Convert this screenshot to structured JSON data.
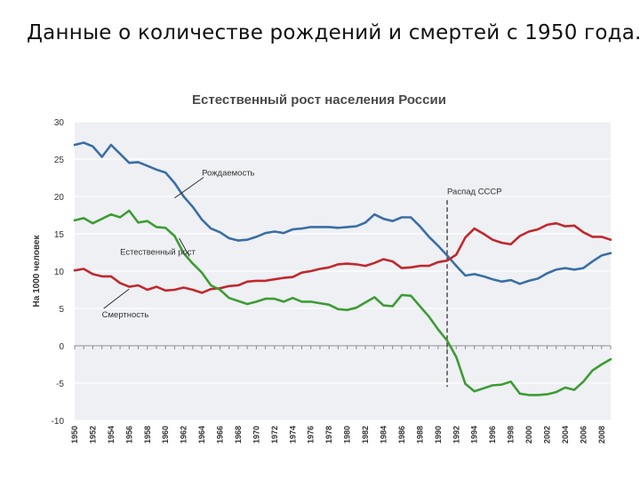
{
  "slide": {
    "title": "Данные о количестве рождений и смертей с 1950 года."
  },
  "colors": {
    "births": "#3b6ea5",
    "deaths": "#c0282d",
    "natural_growth": "#3f9b35",
    "plot_bg": "#eef0f4",
    "grid": "#ffffff",
    "annotation": "#333333"
  },
  "chart_data": {
    "type": "line",
    "title": "Естественный рост населения России",
    "ylabel": "На 1000 человек",
    "xlabel": "",
    "ylim": [
      -10,
      30
    ],
    "xlim": [
      1950,
      2009
    ],
    "yticks": [
      30,
      25,
      20,
      15,
      10,
      5,
      0,
      -5,
      -10
    ],
    "xticks": [
      1950,
      1952,
      1954,
      1956,
      1958,
      1960,
      1962,
      1964,
      1966,
      1968,
      1970,
      1972,
      1974,
      1976,
      1978,
      1980,
      1982,
      1984,
      1986,
      1988,
      1990,
      1992,
      1994,
      1996,
      1998,
      2000,
      2002,
      2004,
      2006,
      2008
    ],
    "grid": true,
    "legend": "inline labels",
    "series": [
      {
        "name": "Рождаемость",
        "key": "births",
        "points": [
          [
            1950,
            26.9
          ],
          [
            1951,
            27.2
          ],
          [
            1952,
            26.7
          ],
          [
            1953,
            25.3
          ],
          [
            1954,
            26.9
          ],
          [
            1955,
            25.7
          ],
          [
            1956,
            24.5
          ],
          [
            1957,
            24.6
          ],
          [
            1958,
            24.1
          ],
          [
            1959,
            23.6
          ],
          [
            1960,
            23.2
          ],
          [
            1961,
            21.8
          ],
          [
            1962,
            20.0
          ],
          [
            1963,
            18.6
          ],
          [
            1964,
            16.9
          ],
          [
            1965,
            15.7
          ],
          [
            1966,
            15.2
          ],
          [
            1967,
            14.4
          ],
          [
            1968,
            14.1
          ],
          [
            1969,
            14.2
          ],
          [
            1970,
            14.6
          ],
          [
            1971,
            15.1
          ],
          [
            1972,
            15.3
          ],
          [
            1973,
            15.1
          ],
          [
            1974,
            15.6
          ],
          [
            1975,
            15.7
          ],
          [
            1976,
            15.9
          ],
          [
            1977,
            15.9
          ],
          [
            1978,
            15.9
          ],
          [
            1979,
            15.8
          ],
          [
            1980,
            15.9
          ],
          [
            1981,
            16.0
          ],
          [
            1982,
            16.5
          ],
          [
            1983,
            17.6
          ],
          [
            1984,
            17.0
          ],
          [
            1985,
            16.7
          ],
          [
            1986,
            17.2
          ],
          [
            1987,
            17.2
          ],
          [
            1988,
            16.0
          ],
          [
            1989,
            14.6
          ],
          [
            1990,
            13.4
          ],
          [
            1991,
            12.1
          ],
          [
            1992,
            10.7
          ],
          [
            1993,
            9.4
          ],
          [
            1994,
            9.6
          ],
          [
            1995,
            9.3
          ],
          [
            1996,
            8.9
          ],
          [
            1997,
            8.6
          ],
          [
            1998,
            8.8
          ],
          [
            1999,
            8.3
          ],
          [
            2000,
            8.7
          ],
          [
            2001,
            9.0
          ],
          [
            2002,
            9.7
          ],
          [
            2003,
            10.2
          ],
          [
            2004,
            10.4
          ],
          [
            2005,
            10.2
          ],
          [
            2006,
            10.4
          ],
          [
            2007,
            11.3
          ],
          [
            2008,
            12.1
          ],
          [
            2009,
            12.4
          ]
        ]
      },
      {
        "name": "Смертность",
        "key": "deaths",
        "points": [
          [
            1950,
            10.1
          ],
          [
            1951,
            10.3
          ],
          [
            1952,
            9.6
          ],
          [
            1953,
            9.3
          ],
          [
            1954,
            9.3
          ],
          [
            1955,
            8.4
          ],
          [
            1956,
            7.9
          ],
          [
            1957,
            8.1
          ],
          [
            1958,
            7.5
          ],
          [
            1959,
            7.9
          ],
          [
            1960,
            7.4
          ],
          [
            1961,
            7.5
          ],
          [
            1962,
            7.8
          ],
          [
            1963,
            7.5
          ],
          [
            1964,
            7.1
          ],
          [
            1965,
            7.6
          ],
          [
            1966,
            7.7
          ],
          [
            1967,
            8.0
          ],
          [
            1968,
            8.1
          ],
          [
            1969,
            8.6
          ],
          [
            1970,
            8.7
          ],
          [
            1971,
            8.7
          ],
          [
            1972,
            8.9
          ],
          [
            1973,
            9.1
          ],
          [
            1974,
            9.2
          ],
          [
            1975,
            9.8
          ],
          [
            1976,
            10.0
          ],
          [
            1977,
            10.3
          ],
          [
            1978,
            10.5
          ],
          [
            1979,
            10.9
          ],
          [
            1980,
            11.0
          ],
          [
            1981,
            10.9
          ],
          [
            1982,
            10.7
          ],
          [
            1983,
            11.1
          ],
          [
            1984,
            11.6
          ],
          [
            1985,
            11.3
          ],
          [
            1986,
            10.4
          ],
          [
            1987,
            10.5
          ],
          [
            1988,
            10.7
          ],
          [
            1989,
            10.7
          ],
          [
            1990,
            11.2
          ],
          [
            1991,
            11.4
          ],
          [
            1992,
            12.2
          ],
          [
            1993,
            14.5
          ],
          [
            1994,
            15.7
          ],
          [
            1995,
            15.0
          ],
          [
            1996,
            14.2
          ],
          [
            1997,
            13.8
          ],
          [
            1998,
            13.6
          ],
          [
            1999,
            14.7
          ],
          [
            2000,
            15.3
          ],
          [
            2001,
            15.6
          ],
          [
            2002,
            16.2
          ],
          [
            2003,
            16.4
          ],
          [
            2004,
            16.0
          ],
          [
            2005,
            16.1
          ],
          [
            2006,
            15.2
          ],
          [
            2007,
            14.6
          ],
          [
            2008,
            14.6
          ],
          [
            2009,
            14.2
          ]
        ]
      },
      {
        "name": "Естественный рост",
        "key": "natural_growth",
        "points": [
          [
            1950,
            16.8
          ],
          [
            1951,
            17.1
          ],
          [
            1952,
            16.4
          ],
          [
            1953,
            17.0
          ],
          [
            1954,
            17.6
          ],
          [
            1955,
            17.2
          ],
          [
            1956,
            18.1
          ],
          [
            1957,
            16.5
          ],
          [
            1958,
            16.7
          ],
          [
            1959,
            15.9
          ],
          [
            1960,
            15.8
          ],
          [
            1961,
            14.7
          ],
          [
            1962,
            12.4
          ],
          [
            1963,
            11.0
          ],
          [
            1964,
            9.8
          ],
          [
            1965,
            8.1
          ],
          [
            1966,
            7.5
          ],
          [
            1967,
            6.4
          ],
          [
            1968,
            6.0
          ],
          [
            1969,
            5.6
          ],
          [
            1970,
            5.9
          ],
          [
            1971,
            6.3
          ],
          [
            1972,
            6.3
          ],
          [
            1973,
            5.9
          ],
          [
            1974,
            6.4
          ],
          [
            1975,
            5.9
          ],
          [
            1976,
            5.9
          ],
          [
            1977,
            5.7
          ],
          [
            1978,
            5.5
          ],
          [
            1979,
            4.9
          ],
          [
            1980,
            4.8
          ],
          [
            1981,
            5.1
          ],
          [
            1982,
            5.8
          ],
          [
            1983,
            6.5
          ],
          [
            1984,
            5.4
          ],
          [
            1985,
            5.3
          ],
          [
            1986,
            6.8
          ],
          [
            1987,
            6.7
          ],
          [
            1988,
            5.3
          ],
          [
            1989,
            3.9
          ],
          [
            1990,
            2.2
          ],
          [
            1991,
            0.7
          ],
          [
            1992,
            -1.5
          ],
          [
            1993,
            -5.1
          ],
          [
            1994,
            -6.1
          ],
          [
            1995,
            -5.7
          ],
          [
            1996,
            -5.3
          ],
          [
            1997,
            -5.2
          ],
          [
            1998,
            -4.8
          ],
          [
            1999,
            -6.4
          ],
          [
            2000,
            -6.6
          ],
          [
            2001,
            -6.6
          ],
          [
            2002,
            -6.5
          ],
          [
            2003,
            -6.2
          ],
          [
            2004,
            -5.6
          ],
          [
            2005,
            -5.9
          ],
          [
            2006,
            -4.8
          ],
          [
            2007,
            -3.3
          ],
          [
            2008,
            -2.5
          ],
          [
            2009,
            -1.8
          ]
        ]
      }
    ],
    "annotations": [
      {
        "id": "births",
        "text": "Рождаемость",
        "x": 1964,
        "y": 22.8,
        "arrow_to": [
          1961,
          19.8
        ]
      },
      {
        "id": "growth",
        "text": "Естественный рост",
        "x": 1955,
        "y": 12.2,
        "arrow_to": [
          1961.5,
          14.4
        ]
      },
      {
        "id": "deaths",
        "text": "Смертность",
        "x": 1953,
        "y": 3.8,
        "arrow_to": [
          1956,
          7.6
        ]
      },
      {
        "id": "ussr",
        "text": "Распад СССР",
        "x": 1991,
        "y": 20.3
      }
    ],
    "events": [
      {
        "label": "Распад СССР",
        "x": 1991,
        "y_from": 19.5,
        "y_to": -5.5
      }
    ]
  }
}
